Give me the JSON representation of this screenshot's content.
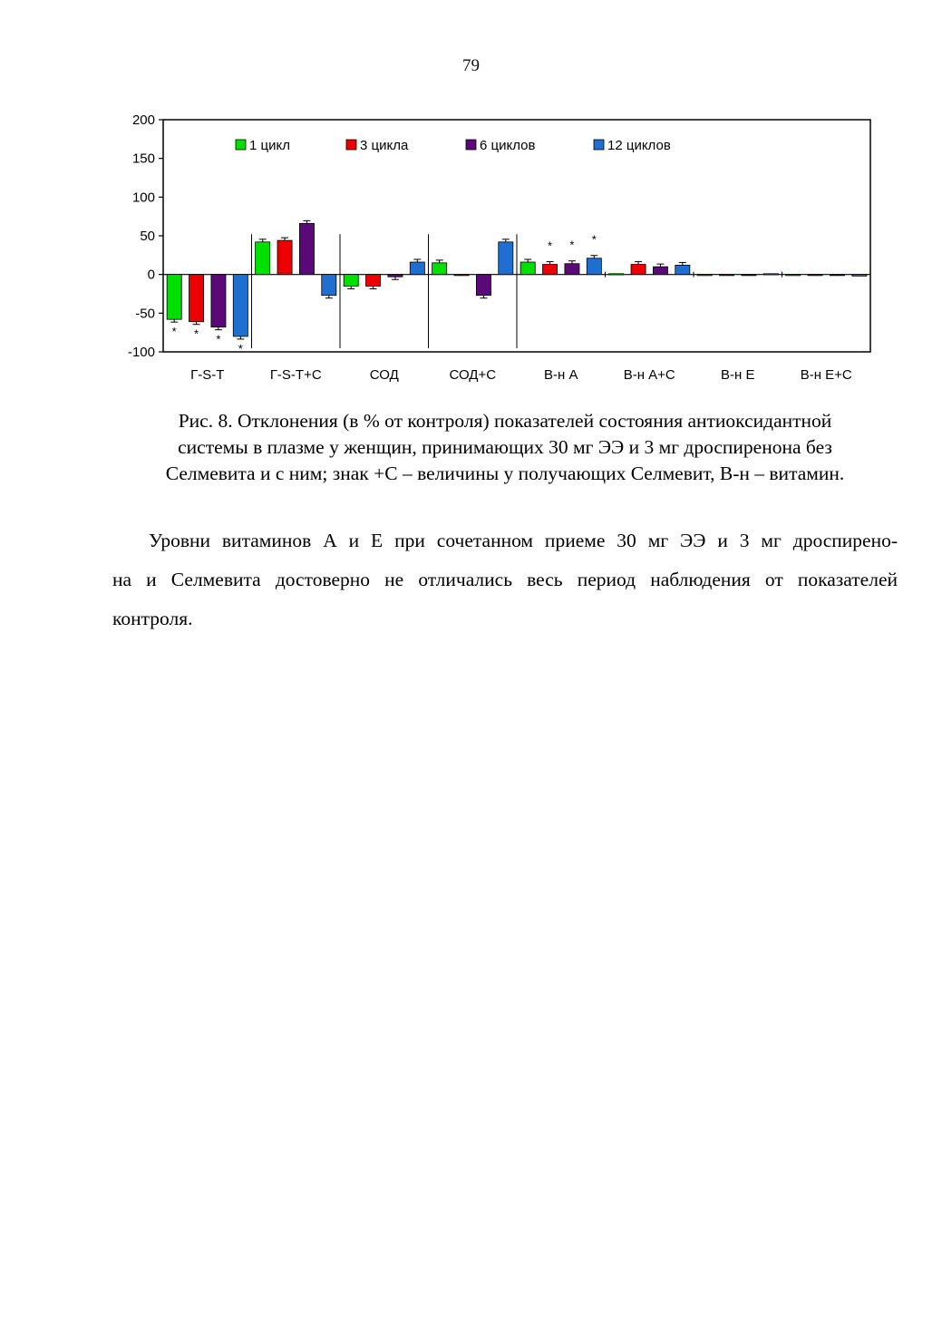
{
  "page_number": "79",
  "chart_data": {
    "type": "bar",
    "categories": [
      "Г-S-T",
      "Г-S-T+C",
      "СОД",
      "СОД+С",
      "В-н А",
      "В-н А+С",
      "В-н Е",
      "В-н Е+С"
    ],
    "series": [
      {
        "name": "1 цикл",
        "color": "#00e000",
        "values": [
          -58,
          42,
          -15,
          15,
          16,
          1,
          -1,
          -1
        ]
      },
      {
        "name": "3 цикла",
        "color": "#ee0000",
        "values": [
          -61,
          44,
          -15,
          0,
          13,
          13,
          -1,
          -1
        ]
      },
      {
        "name": "6 циклов",
        "color": "#5a0a78",
        "values": [
          -68,
          66,
          -3,
          -27,
          14,
          10,
          0,
          -1
        ]
      },
      {
        "name": "12 циклов",
        "color": "#1f6fd0",
        "values": [
          -80,
          -27,
          16,
          42,
          21,
          12,
          1,
          -2
        ]
      }
    ],
    "significance": [
      [
        "*",
        "*",
        "*",
        "*"
      ],
      [
        "",
        "",
        "",
        ""
      ],
      [
        "",
        "",
        "",
        ""
      ],
      [
        "",
        "",
        "",
        ""
      ],
      [
        "",
        "*",
        "*",
        "*"
      ],
      [
        "",
        "",
        "",
        ""
      ],
      [
        "",
        "",
        "",
        ""
      ],
      [
        "",
        "",
        "",
        ""
      ]
    ],
    "ylim": [
      -100,
      200
    ],
    "yticks": [
      "200",
      "150",
      "100",
      "50",
      "0",
      "-50",
      "-100"
    ],
    "ytick_values": [
      200,
      150,
      100,
      50,
      0,
      -50,
      -100
    ],
    "legend_position": "top",
    "grid": false
  },
  "caption": [
    "Рис. 8. Отклонения (в % от контроля) показателей состояния антиоксидантной",
    "системы в плазме у женщин, принимающих 30 мг ЭЭ и 3 мг дроспиренона без",
    "Селмевита и с ним; знак +С – величины у получающих Селмевит, В-н – витамин."
  ],
  "paragraph": [
    "Уровни витаминов А и Е при сочетанном приеме 30 мг ЭЭ и 3 мг дроспирено-",
    "на и Селмевита достоверно не отличались весь период наблюдения от показателей",
    "контроля."
  ]
}
